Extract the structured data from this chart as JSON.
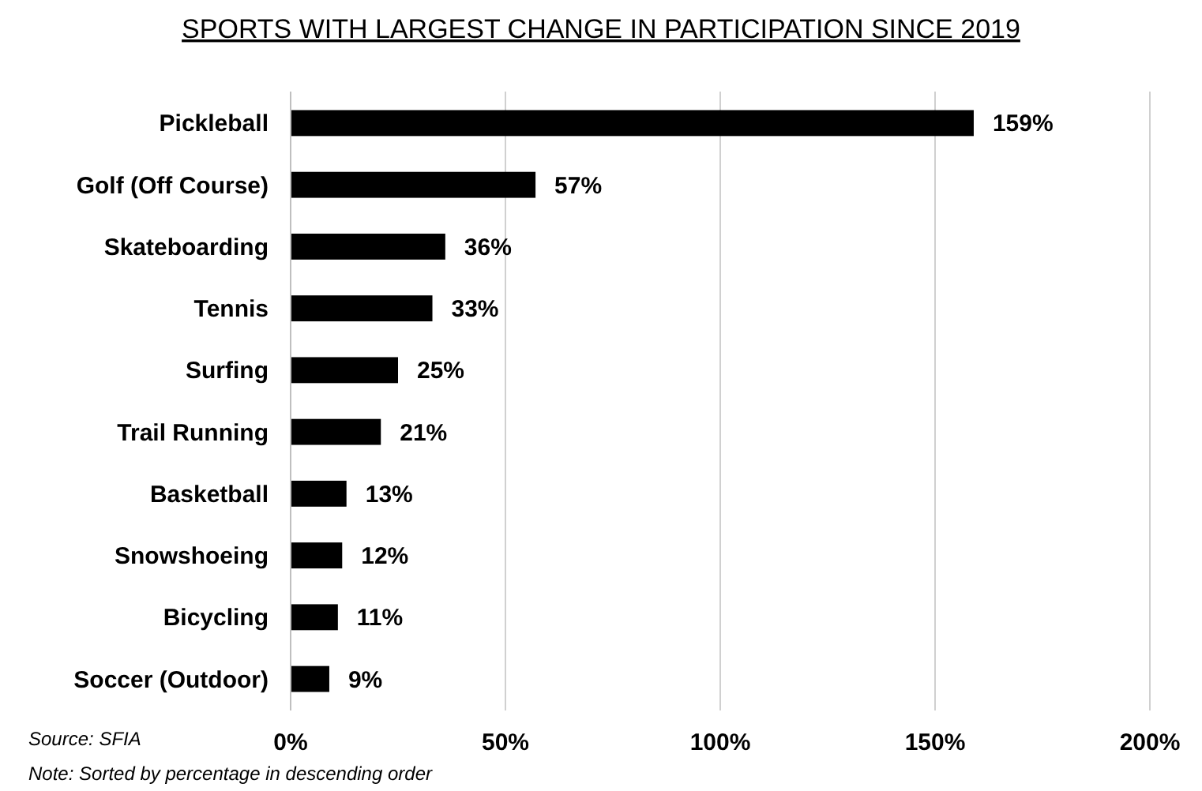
{
  "chart_data": {
    "type": "bar",
    "orientation": "horizontal",
    "title": "SPORTS WITH LARGEST CHANGE IN PARTICIPATION SINCE 2019",
    "categories": [
      "Pickleball",
      "Golf (Off Course)",
      "Skateboarding",
      "Tennis",
      "Surfing",
      "Trail Running",
      "Basketball",
      "Snowshoeing",
      "Bicycling",
      "Soccer (Outdoor)"
    ],
    "values": [
      159,
      57,
      36,
      33,
      25,
      21,
      13,
      12,
      11,
      9
    ],
    "value_labels": [
      "159%",
      "57%",
      "36%",
      "33%",
      "25%",
      "21%",
      "13%",
      "12%",
      "11%",
      "9%"
    ],
    "color": "#000000",
    "xlim": [
      0,
      200
    ],
    "xticks": [
      {
        "value": 0,
        "label": "0%"
      },
      {
        "value": 50,
        "label": "50%"
      },
      {
        "value": 100,
        "label": "100%"
      },
      {
        "value": 150,
        "label": "150%"
      },
      {
        "value": 200,
        "label": "200%"
      }
    ],
    "grid": "x",
    "annotations": [
      "Source: SFIA",
      "Note: Sorted by percentage in descending order"
    ]
  }
}
